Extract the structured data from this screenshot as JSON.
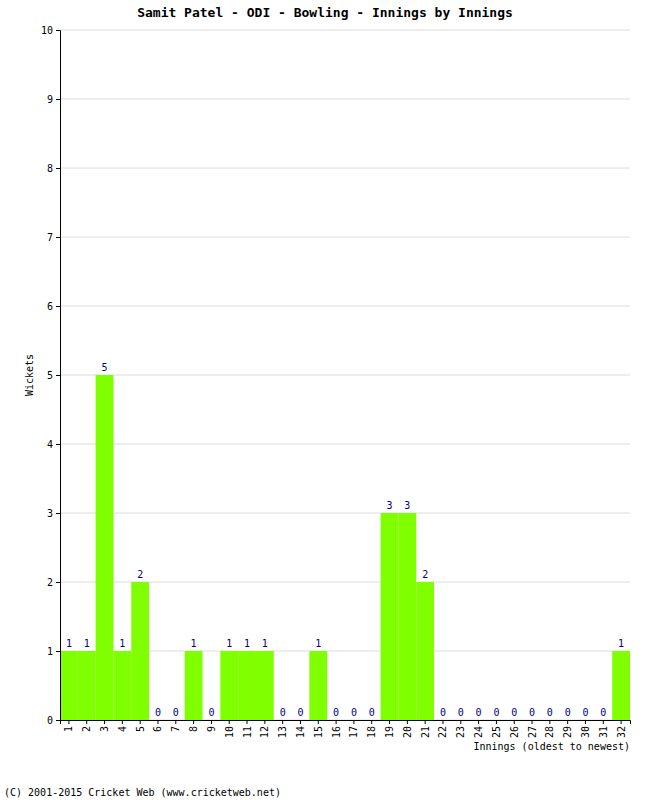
{
  "chart_data": {
    "type": "bar",
    "title": "Samit Patel - ODI - Bowling - Innings by Innings",
    "y_label": "Wickets",
    "x_label": "Innings (oldest to newest)",
    "annotations": [
      "(C) 2001-2015 Cricket Web (www.cricketweb.net)"
    ],
    "categories": [
      "1",
      "2",
      "3",
      "4",
      "5",
      "6",
      "7",
      "8",
      "9",
      "10",
      "11",
      "12",
      "13",
      "14",
      "15",
      "16",
      "17",
      "18",
      "19",
      "20",
      "21",
      "22",
      "23",
      "24",
      "25",
      "26",
      "27",
      "28",
      "29",
      "30",
      "31",
      "32"
    ],
    "values": [
      1,
      1,
      5,
      1,
      2,
      0,
      0,
      1,
      0,
      1,
      1,
      1,
      0,
      0,
      1,
      0,
      0,
      0,
      3,
      3,
      2,
      0,
      0,
      0,
      0,
      0,
      0,
      0,
      0,
      0,
      0,
      1
    ],
    "color": "#80ff00",
    "ylim": [
      0,
      10
    ],
    "yticks": [
      0,
      1,
      2,
      3,
      4,
      5,
      6,
      7,
      8,
      9,
      10
    ],
    "grid": true,
    "data_labels": true
  }
}
